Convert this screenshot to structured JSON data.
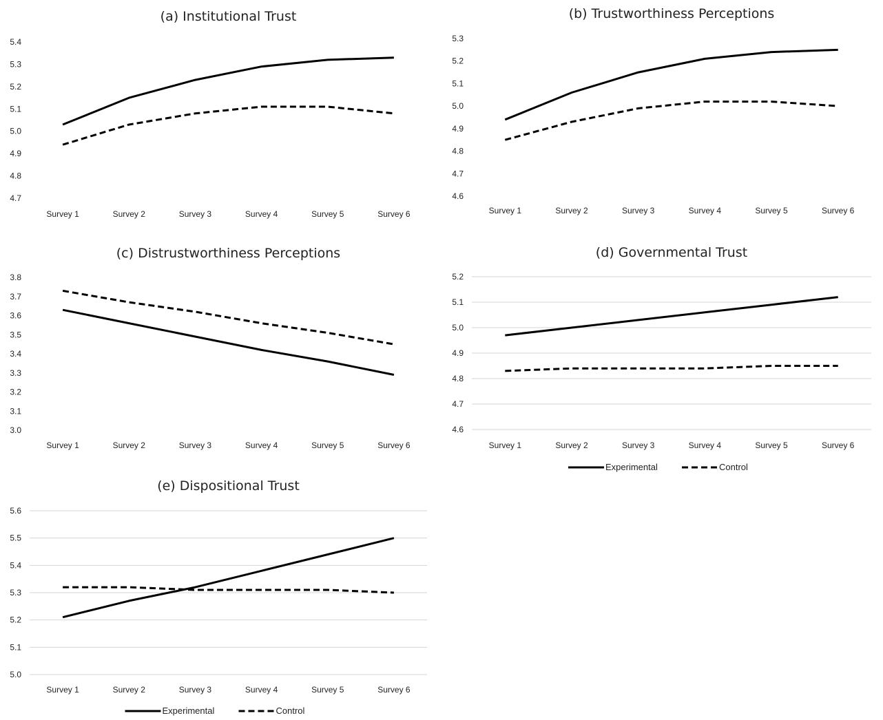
{
  "legend": {
    "experimental": "Experimental",
    "control": "Control"
  },
  "chart_data": [
    {
      "id": "a",
      "type": "line",
      "title": "(a) Institutional Trust",
      "categories": [
        "Survey 1",
        "Survey 2",
        "Survey 3",
        "Survey 4",
        "Survey 5",
        "Survey 6"
      ],
      "ylim": [
        4.7,
        5.4
      ],
      "yticks": [
        "4.7",
        "4.8",
        "4.9",
        "5.0",
        "5.1",
        "5.2",
        "5.3",
        "5.4"
      ],
      "grid": false,
      "series": [
        {
          "name": "Experimental",
          "style": "solid",
          "values": [
            5.03,
            5.15,
            5.23,
            5.29,
            5.32,
            5.33
          ]
        },
        {
          "name": "Control",
          "style": "dashed",
          "values": [
            4.94,
            5.03,
            5.08,
            5.11,
            5.11,
            5.08
          ]
        }
      ]
    },
    {
      "id": "b",
      "type": "line",
      "title": "(b) Trustworthiness Perceptions",
      "categories": [
        "Survey 1",
        "Survey 2",
        "Survey 3",
        "Survey 4",
        "Survey 5",
        "Survey 6"
      ],
      "ylim": [
        4.6,
        5.3
      ],
      "yticks": [
        "4.6",
        "4.7",
        "4.8",
        "4.9",
        "5.0",
        "5.1",
        "5.2",
        "5.3"
      ],
      "grid": false,
      "series": [
        {
          "name": "Experimental",
          "style": "solid",
          "values": [
            4.94,
            5.06,
            5.15,
            5.21,
            5.24,
            5.25
          ]
        },
        {
          "name": "Control",
          "style": "dashed",
          "values": [
            4.85,
            4.93,
            4.99,
            5.02,
            5.02,
            5.0
          ]
        }
      ]
    },
    {
      "id": "c",
      "type": "line",
      "title": "(c) Distrustworthiness Perceptions",
      "categories": [
        "Survey 1",
        "Survey 2",
        "Survey 3",
        "Survey 4",
        "Survey 5",
        "Survey 6"
      ],
      "ylim": [
        3.0,
        3.8
      ],
      "yticks": [
        "3.0",
        "3.1",
        "3.2",
        "3.3",
        "3.4",
        "3.5",
        "3.6",
        "3.7",
        "3.8"
      ],
      "grid": false,
      "series": [
        {
          "name": "Experimental",
          "style": "solid",
          "values": [
            3.63,
            3.56,
            3.49,
            3.42,
            3.36,
            3.29
          ]
        },
        {
          "name": "Control",
          "style": "dashed",
          "values": [
            3.73,
            3.67,
            3.62,
            3.56,
            3.51,
            3.45
          ]
        }
      ]
    },
    {
      "id": "d",
      "type": "line",
      "title": "(d) Governmental Trust",
      "categories": [
        "Survey 1",
        "Survey 2",
        "Survey 3",
        "Survey 4",
        "Survey 5",
        "Survey 6"
      ],
      "ylim": [
        4.6,
        5.2
      ],
      "yticks": [
        "4.6",
        "4.7",
        "4.8",
        "4.9",
        "5.0",
        "5.1",
        "5.2"
      ],
      "grid": true,
      "legend": true,
      "series": [
        {
          "name": "Experimental",
          "style": "solid",
          "values": [
            4.97,
            5.0,
            5.03,
            5.06,
            5.09,
            5.12
          ]
        },
        {
          "name": "Control",
          "style": "dashed",
          "values": [
            4.83,
            4.84,
            4.84,
            4.84,
            4.85,
            4.85
          ]
        }
      ]
    },
    {
      "id": "e",
      "type": "line",
      "title": "(e) Dispositional Trust",
      "categories": [
        "Survey 1",
        "Survey 2",
        "Survey 3",
        "Survey 4",
        "Survey 5",
        "Survey 6"
      ],
      "ylim": [
        5.0,
        5.6
      ],
      "yticks": [
        "5.0",
        "5.1",
        "5.2",
        "5.3",
        "5.4",
        "5.5",
        "5.6"
      ],
      "grid": true,
      "legend": true,
      "series": [
        {
          "name": "Experimental",
          "style": "solid",
          "values": [
            5.21,
            5.27,
            5.32,
            5.38,
            5.44,
            5.5
          ]
        },
        {
          "name": "Control",
          "style": "dashed",
          "values": [
            5.32,
            5.32,
            5.31,
            5.31,
            5.31,
            5.3
          ]
        }
      ]
    }
  ]
}
